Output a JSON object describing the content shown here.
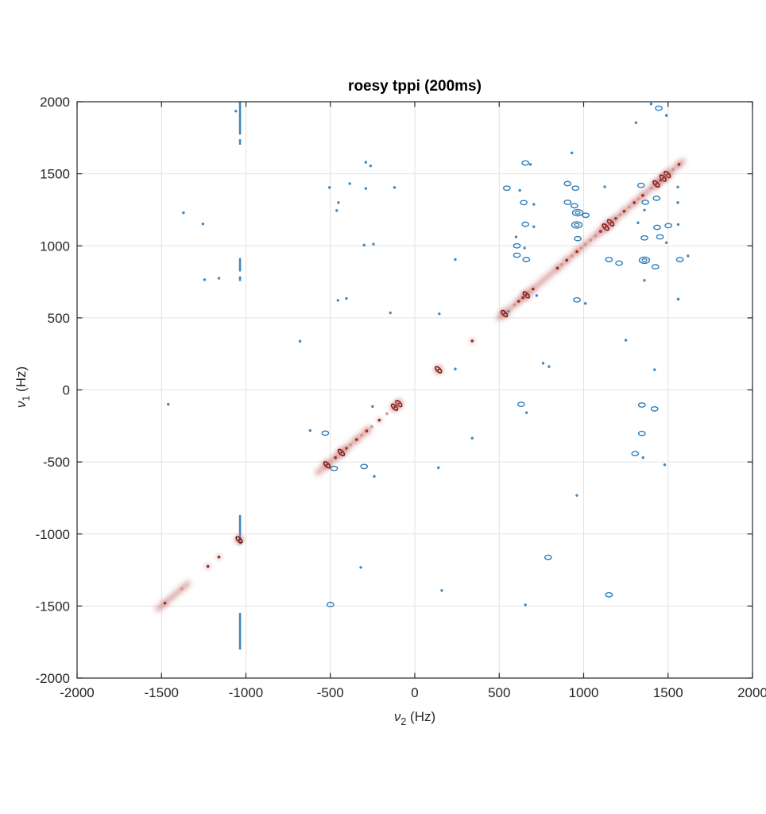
{
  "chart_data": {
    "type": "scatter",
    "title": "roesy tppi (200ms)",
    "subtitle": "",
    "xlabel": {
      "symbol": "ν",
      "subscript": "2",
      "unit": " (Hz)"
    },
    "ylabel": {
      "symbol": "ν",
      "subscript": "1",
      "unit": " (Hz)"
    },
    "xlim": [
      -2000,
      2000
    ],
    "ylim": [
      -2000,
      2000
    ],
    "xticks": [
      -2000,
      -1500,
      -1000,
      -500,
      0,
      500,
      1000,
      1500,
      2000
    ],
    "yticks": [
      -2000,
      -1500,
      -1000,
      -500,
      0,
      500,
      1000,
      1500,
      2000
    ],
    "grid": true,
    "legend": "none",
    "colors": {
      "diagonal_peak": "#7d1210",
      "diagonal_peak_mid": "#9d2a24",
      "diagonal_peak_light": "#d2908d",
      "diagonal_halo": "#cf8f8f",
      "smear": "#c87c78",
      "cross_peak": "#2b7bb8",
      "grid": "#e2e2e2",
      "axis": "#262626"
    },
    "diagonal_peaks": {
      "description": "Negative-phase diagonal peaks at nu1 = nu2, [frequency_hz, intensity_class 1-3]",
      "freqs_hz": [
        [
          1565,
          2
        ],
        [
          1530,
          1
        ],
        [
          1495,
          3
        ],
        [
          1470,
          3
        ],
        [
          1455,
          2
        ],
        [
          1430,
          3
        ],
        [
          1400,
          1
        ],
        [
          1350,
          2
        ],
        [
          1325,
          1
        ],
        [
          1300,
          2
        ],
        [
          1270,
          1
        ],
        [
          1240,
          2
        ],
        [
          1215,
          1
        ],
        [
          1190,
          2
        ],
        [
          1160,
          3
        ],
        [
          1130,
          3
        ],
        [
          1100,
          2
        ],
        [
          1070,
          1
        ],
        [
          1040,
          1
        ],
        [
          1010,
          1
        ],
        [
          985,
          1
        ],
        [
          960,
          2
        ],
        [
          930,
          1
        ],
        [
          900,
          2
        ],
        [
          870,
          1
        ],
        [
          845,
          2
        ],
        [
          700,
          2
        ],
        [
          660,
          3
        ],
        [
          640,
          2
        ],
        [
          615,
          2
        ],
        [
          590,
          1
        ],
        [
          530,
          3
        ],
        [
          340,
          2
        ],
        [
          140,
          3
        ],
        [
          -95,
          3
        ],
        [
          -120,
          3
        ],
        [
          -165,
          1
        ],
        [
          -210,
          2
        ],
        [
          -255,
          1
        ],
        [
          -285,
          2
        ],
        [
          -315,
          1
        ],
        [
          -345,
          2
        ],
        [
          -380,
          1
        ],
        [
          -405,
          2
        ],
        [
          -435,
          3
        ],
        [
          -470,
          2
        ],
        [
          -520,
          3
        ],
        [
          -1040,
          3
        ],
        [
          -1160,
          2
        ],
        [
          -1225,
          2
        ],
        [
          -1380,
          1
        ],
        [
          -1480,
          2
        ]
      ]
    },
    "diagonal_smears_hz": [
      [
        -575,
        -270
      ],
      [
        500,
        1072
      ],
      [
        1085,
        1585
      ],
      [
        -1520,
        -1345
      ]
    ],
    "cross_peaks": {
      "description": "Positive-phase off-diagonal ROE cross peaks, [nu2_hz, nu1_hz, size_class 1-3]",
      "points_hz": [
        [
          -1060,
          1935,
          1
        ],
        [
          1400,
          1985,
          1
        ],
        [
          1445,
          1955,
          2
        ],
        [
          1490,
          1905,
          1
        ],
        [
          1310,
          1855,
          1
        ],
        [
          655,
          1575,
          2
        ],
        [
          685,
          1565,
          1
        ],
        [
          930,
          1645,
          1
        ],
        [
          -290,
          1580,
          1
        ],
        [
          -262,
          1555,
          1
        ],
        [
          -505,
          1405,
          1
        ],
        [
          -385,
          1432,
          1
        ],
        [
          -290,
          1398,
          1
        ],
        [
          -120,
          1405,
          1
        ],
        [
          545,
          1400,
          2
        ],
        [
          622,
          1385,
          1
        ],
        [
          905,
          1432,
          2
        ],
        [
          952,
          1400,
          2
        ],
        [
          1125,
          1410,
          1
        ],
        [
          1340,
          1420,
          2
        ],
        [
          1558,
          1408,
          1
        ],
        [
          -452,
          1300,
          1
        ],
        [
          645,
          1300,
          2
        ],
        [
          705,
          1288,
          1
        ],
        [
          905,
          1302,
          2
        ],
        [
          945,
          1278,
          2
        ],
        [
          1365,
          1302,
          2
        ],
        [
          1432,
          1330,
          2
        ],
        [
          1558,
          1300,
          1
        ],
        [
          -462,
          1245,
          1
        ],
        [
          -1370,
          1230,
          1
        ],
        [
          965,
          1230,
          3
        ],
        [
          1012,
          1212,
          2
        ],
        [
          1360,
          1248,
          1
        ],
        [
          -1255,
          1152,
          1
        ],
        [
          655,
          1150,
          2
        ],
        [
          705,
          1133,
          1
        ],
        [
          960,
          1145,
          3
        ],
        [
          1322,
          1160,
          1
        ],
        [
          1435,
          1128,
          2
        ],
        [
          1502,
          1140,
          2
        ],
        [
          1560,
          1148,
          1
        ],
        [
          600,
          1062,
          1
        ],
        [
          965,
          1050,
          2
        ],
        [
          1360,
          1055,
          2
        ],
        [
          1452,
          1062,
          2
        ],
        [
          1490,
          1022,
          1
        ],
        [
          -300,
          1005,
          1
        ],
        [
          -245,
          1012,
          1
        ],
        [
          605,
          1000,
          2
        ],
        [
          650,
          985,
          1
        ],
        [
          240,
          905,
          1
        ],
        [
          605,
          935,
          2
        ],
        [
          660,
          905,
          2
        ],
        [
          1150,
          905,
          2
        ],
        [
          1210,
          880,
          2
        ],
        [
          1360,
          900,
          3
        ],
        [
          1425,
          855,
          2
        ],
        [
          1570,
          905,
          2
        ],
        [
          1618,
          930,
          1
        ],
        [
          -1245,
          765,
          1
        ],
        [
          -1160,
          775,
          1
        ],
        [
          1360,
          760,
          1
        ],
        [
          655,
          662,
          1
        ],
        [
          722,
          655,
          1
        ],
        [
          -455,
          622,
          1
        ],
        [
          -405,
          635,
          1
        ],
        [
          960,
          625,
          2
        ],
        [
          1010,
          600,
          1
        ],
        [
          1560,
          630,
          1
        ],
        [
          -145,
          535,
          1
        ],
        [
          555,
          545,
          1
        ],
        [
          145,
          528,
          1
        ],
        [
          -680,
          338,
          1
        ],
        [
          1250,
          345,
          1
        ],
        [
          240,
          145,
          1
        ],
        [
          760,
          185,
          1
        ],
        [
          795,
          162,
          1
        ],
        [
          1420,
          140,
          1
        ],
        [
          630,
          -100,
          2
        ],
        [
          662,
          -158,
          1
        ],
        [
          -1460,
          -100,
          1
        ],
        [
          1345,
          -105,
          2
        ],
        [
          1420,
          -132,
          2
        ],
        [
          -250,
          -115,
          1
        ],
        [
          -620,
          -282,
          1
        ],
        [
          1345,
          -302,
          2
        ],
        [
          340,
          -335,
          1
        ],
        [
          -530,
          -300,
          2
        ],
        [
          -300,
          -532,
          2
        ],
        [
          -478,
          -545,
          2
        ],
        [
          1305,
          -442,
          2
        ],
        [
          1352,
          -470,
          1
        ],
        [
          1480,
          -520,
          1
        ],
        [
          140,
          -540,
          1
        ],
        [
          -240,
          -600,
          1
        ],
        [
          960,
          -732,
          1
        ],
        [
          790,
          -1162,
          2
        ],
        [
          -320,
          -1232,
          1
        ],
        [
          -500,
          -1490,
          2
        ],
        [
          160,
          -1392,
          1
        ],
        [
          1150,
          -1422,
          2
        ],
        [
          655,
          -1492,
          1
        ]
      ]
    },
    "t1_noise_streak": {
      "description": "Vertical t1-noise / solvent streak",
      "x_hz": -1035,
      "y_segments_hz": [
        [
          2000,
          1772
        ],
        [
          1740,
          1702
        ],
        [
          915,
          822
        ],
        [
          788,
          756
        ],
        [
          -868,
          -1072
        ],
        [
          -1548,
          -1802
        ]
      ]
    }
  }
}
